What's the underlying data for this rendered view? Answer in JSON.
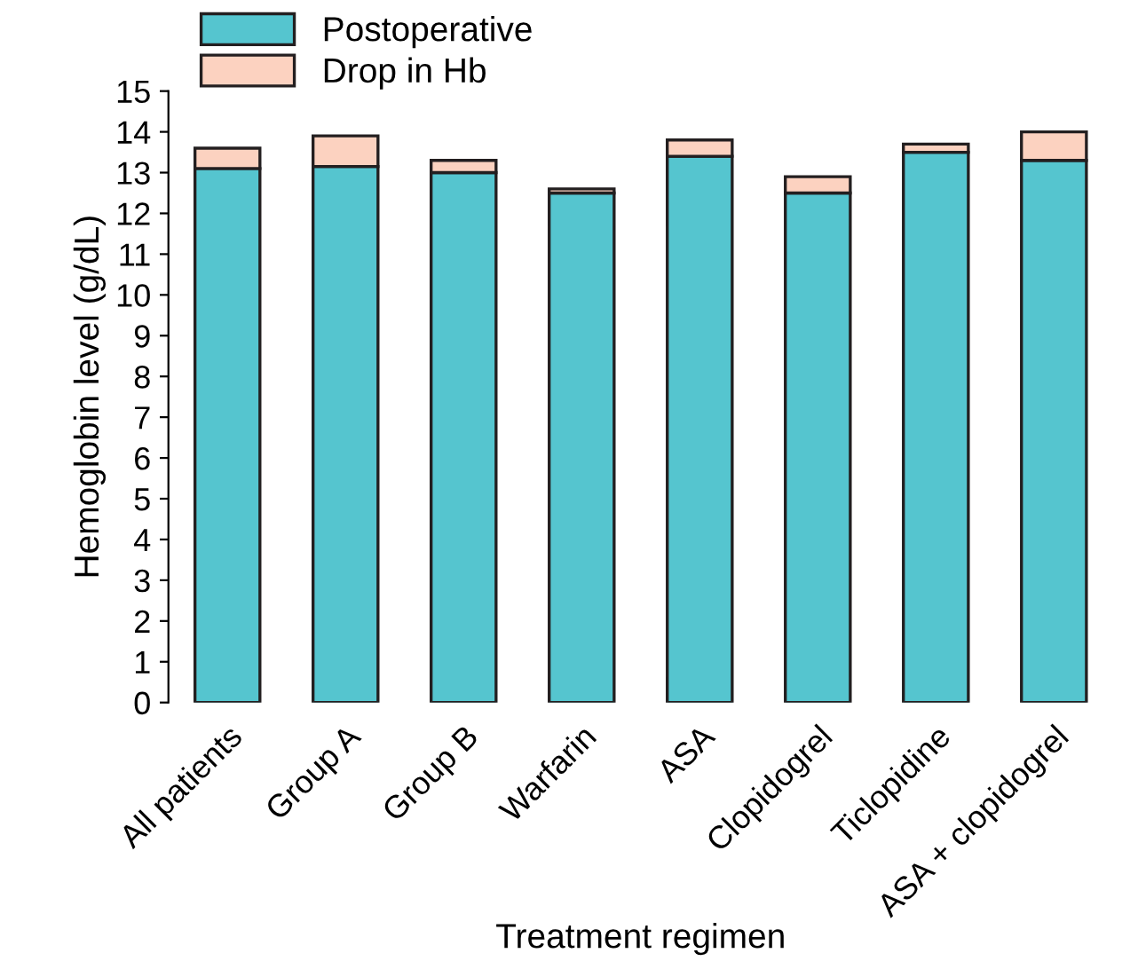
{
  "chart_data": {
    "type": "bar",
    "stacked": true,
    "xlabel": "Treatment regimen",
    "ylabel": "Hemoglobin level (g/dL)",
    "categories": [
      "All patients",
      "Group A",
      "Group B",
      "Warfarin",
      "ASA",
      "Clopidogrel",
      "Ticlopidine",
      "ASA + clopidogrel"
    ],
    "series": [
      {
        "name": "Postoperative",
        "color": "#55c5cf",
        "values": [
          13.1,
          13.15,
          13.0,
          12.5,
          13.4,
          12.5,
          13.5,
          13.3
        ]
      },
      {
        "name": "Drop in Hb",
        "color": "#fcd2c0",
        "values": [
          0.5,
          0.75,
          0.3,
          0.1,
          0.4,
          0.4,
          0.2,
          0.7
        ]
      }
    ],
    "ylim": [
      0,
      15
    ],
    "yticks": [
      0,
      1,
      2,
      3,
      4,
      5,
      6,
      7,
      8,
      9,
      10,
      11,
      12,
      13,
      14,
      15
    ],
    "grid": false,
    "legend": "top left"
  }
}
